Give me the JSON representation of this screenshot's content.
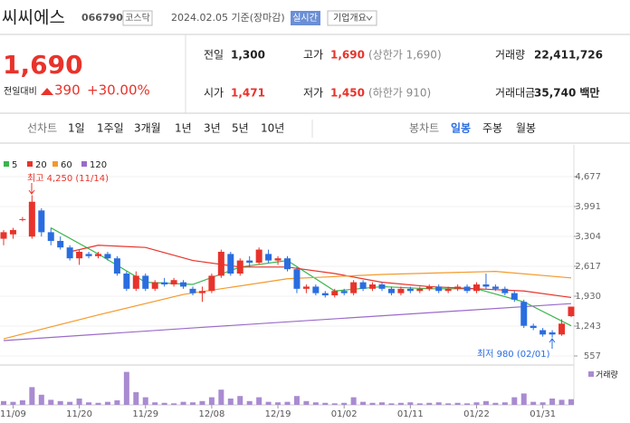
{
  "header": {
    "title": "씨씨에스",
    "code": "066790",
    "market": "코스닥",
    "date": "2024.02.05 기준(장마감)",
    "realtime": "실시간",
    "company_info": "기업개요"
  },
  "quote": {
    "price": "1,690",
    "change_label": "전일대비",
    "change": "390",
    "change_pct": "+30.00%"
  },
  "stats": [
    {
      "label": "전일",
      "value": "1,300"
    },
    {
      "label": "고가",
      "value": "1,690",
      "note": "(상한가 1,690)"
    },
    {
      "label": "거래량",
      "value": "22,411,726"
    },
    {
      "label": "시가",
      "value": "1,471"
    },
    {
      "label": "저가",
      "value": "1,450",
      "note": "(하한가 910)"
    },
    {
      "label": "거래대금",
      "value": "35,740",
      "unit": "백만"
    }
  ],
  "tabs": {
    "line_chart": "선차트",
    "periods": [
      "1일",
      "1주일",
      "3개월",
      "1년",
      "3년",
      "5년",
      "10년"
    ],
    "candle_chart": "봉차트",
    "candle_periods": [
      "일봉",
      "주봉",
      "월봉"
    ]
  },
  "chart_data": {
    "type": "candlestick",
    "categories": [
      null,
      "11/09",
      null,
      null,
      null,
      null,
      null,
      null,
      "11/20",
      null,
      null,
      null,
      null,
      null,
      null,
      "11/29",
      null,
      null,
      null,
      null,
      null,
      null,
      "12/08",
      null,
      null,
      null,
      null,
      null,
      null,
      "12/19",
      null,
      null,
      null,
      null,
      null,
      null,
      "01/02",
      null,
      null,
      null,
      null,
      null,
      null,
      "01/11",
      null,
      null,
      null,
      null,
      null,
      null,
      "01/22",
      null,
      null,
      null,
      null,
      null,
      null,
      "01/31",
      null,
      null,
      null
    ],
    "ohlc": [
      [
        3250,
        3450,
        3100,
        3400
      ],
      [
        3350,
        3500,
        3250,
        3450
      ],
      [
        3700,
        3750,
        3650,
        3700
      ],
      [
        3300,
        4250,
        3250,
        4100
      ],
      [
        3900,
        3950,
        3300,
        3400
      ],
      [
        3400,
        3500,
        3100,
        3200
      ],
      [
        3200,
        3300,
        3000,
        3050
      ],
      [
        3050,
        3100,
        2750,
        2800
      ],
      [
        2800,
        3000,
        2650,
        2950
      ],
      [
        2900,
        2950,
        2800,
        2850
      ],
      [
        2850,
        2950,
        2800,
        2900
      ],
      [
        2900,
        2950,
        2750,
        2800
      ],
      [
        2800,
        2850,
        2400,
        2450
      ],
      [
        2450,
        2500,
        2050,
        2100
      ],
      [
        2100,
        2500,
        2050,
        2400
      ],
      [
        2400,
        2450,
        2050,
        2100
      ],
      [
        2100,
        2300,
        2050,
        2250
      ],
      [
        2250,
        2350,
        2150,
        2200
      ],
      [
        2200,
        2350,
        2150,
        2300
      ],
      [
        2250,
        2300,
        2100,
        2150
      ],
      [
        2100,
        2150,
        1950,
        2000
      ],
      [
        2000,
        2150,
        1800,
        2050
      ],
      [
        2050,
        2450,
        2000,
        2400
      ],
      [
        2400,
        3000,
        2350,
        2950
      ],
      [
        2900,
        2950,
        2400,
        2450
      ],
      [
        2450,
        2800,
        2400,
        2750
      ],
      [
        2750,
        2850,
        2600,
        2700
      ],
      [
        2700,
        3050,
        2650,
        3000
      ],
      [
        2900,
        3000,
        2700,
        2750
      ],
      [
        2750,
        2850,
        2650,
        2800
      ],
      [
        2800,
        2850,
        2500,
        2550
      ],
      [
        2550,
        2600,
        2000,
        2100
      ],
      [
        2100,
        2200,
        2000,
        2150
      ],
      [
        2150,
        2200,
        1950,
        2000
      ],
      [
        2000,
        2050,
        1900,
        1950
      ],
      [
        1950,
        2100,
        1900,
        2050
      ],
      [
        2050,
        2100,
        1950,
        2000
      ],
      [
        2000,
        2300,
        1950,
        2250
      ],
      [
        2250,
        2300,
        2050,
        2100
      ],
      [
        2100,
        2250,
        2050,
        2200
      ],
      [
        2200,
        2250,
        2050,
        2100
      ],
      [
        2100,
        2150,
        1950,
        2000
      ],
      [
        2000,
        2150,
        1950,
        2100
      ],
      [
        2100,
        2150,
        2000,
        2050
      ],
      [
        2050,
        2150,
        2000,
        2100
      ],
      [
        2100,
        2200,
        2050,
        2150
      ],
      [
        2150,
        2200,
        2000,
        2050
      ],
      [
        2050,
        2150,
        2000,
        2100
      ],
      [
        2100,
        2200,
        2050,
        2150
      ],
      [
        2150,
        2200,
        2000,
        2050
      ],
      [
        2050,
        2250,
        2000,
        2200
      ],
      [
        2200,
        2450,
        2100,
        2150
      ],
      [
        2150,
        2200,
        2050,
        2100
      ],
      [
        2100,
        2150,
        1950,
        2000
      ],
      [
        2000,
        2050,
        1800,
        1850
      ],
      [
        1800,
        1850,
        1200,
        1250
      ],
      [
        1250,
        1300,
        1150,
        1200
      ],
      [
        1150,
        1200,
        1000,
        1050
      ],
      [
        1100,
        1150,
        980,
        1050
      ],
      [
        1050,
        1400,
        1020,
        1300
      ],
      [
        1471,
        1690,
        1450,
        1690
      ]
    ],
    "up_color": "#e8332b",
    "down_color": "#2a6de0",
    "ylim": [
      411,
      4885
    ],
    "yticks": [
      {
        "value": 557,
        "label": "557"
      },
      {
        "value": 1243,
        "label": "1,243"
      },
      {
        "value": 1930,
        "label": "1,930"
      },
      {
        "value": 2617,
        "label": "2,617"
      },
      {
        "value": 3304,
        "label": "3,304"
      },
      {
        "value": 3991,
        "label": "3,991"
      },
      {
        "value": 4677,
        "label": "4,677"
      }
    ],
    "ma_series": [
      {
        "name": "5",
        "color": "#39b54a",
        "x": [
          5,
          10,
          15,
          20,
          25,
          30,
          35,
          40,
          45,
          50,
          55,
          60
        ],
        "values": [
          3500,
          2900,
          2250,
          2200,
          2600,
          2750,
          2050,
          2150,
          2100,
          2100,
          1800,
          1250
        ]
      },
      {
        "name": "20",
        "color": "#e8332b",
        "x": [
          7,
          10,
          15,
          20,
          25,
          30,
          35,
          40,
          45,
          50,
          55,
          60
        ],
        "values": [
          2950,
          3100,
          3050,
          2750,
          2600,
          2600,
          2450,
          2250,
          2150,
          2100,
          2050,
          1900
        ]
      },
      {
        "name": "60",
        "color": "#f39a2b",
        "x": [
          0,
          10,
          19,
          30,
          40,
          52,
          60
        ],
        "values": [
          950,
          1500,
          1970,
          2330,
          2430,
          2500,
          2350
        ]
      },
      {
        "name": "120",
        "color": "#9b6bc9",
        "x": [
          0,
          20,
          40,
          60
        ],
        "values": [
          910,
          1200,
          1480,
          1760
        ]
      }
    ],
    "volume": {
      "name": "거래량",
      "color": "#a98bd1",
      "ylim": [
        0,
        150
      ],
      "values": [
        15,
        12,
        18,
        70,
        40,
        20,
        15,
        12,
        25,
        10,
        8,
        12,
        18,
        130,
        50,
        30,
        10,
        8,
        6,
        12,
        10,
        15,
        30,
        60,
        25,
        35,
        15,
        30,
        12,
        10,
        12,
        35,
        15,
        10,
        8,
        6,
        8,
        30,
        12,
        8,
        10,
        6,
        8,
        10,
        6,
        8,
        10,
        6,
        8,
        6,
        10,
        15,
        8,
        10,
        30,
        45,
        12,
        10,
        25,
        20,
        22.4
      ]
    },
    "annotations": [
      "최고 4,250 (11/14)",
      "최저 980 (02/01)"
    ]
  }
}
